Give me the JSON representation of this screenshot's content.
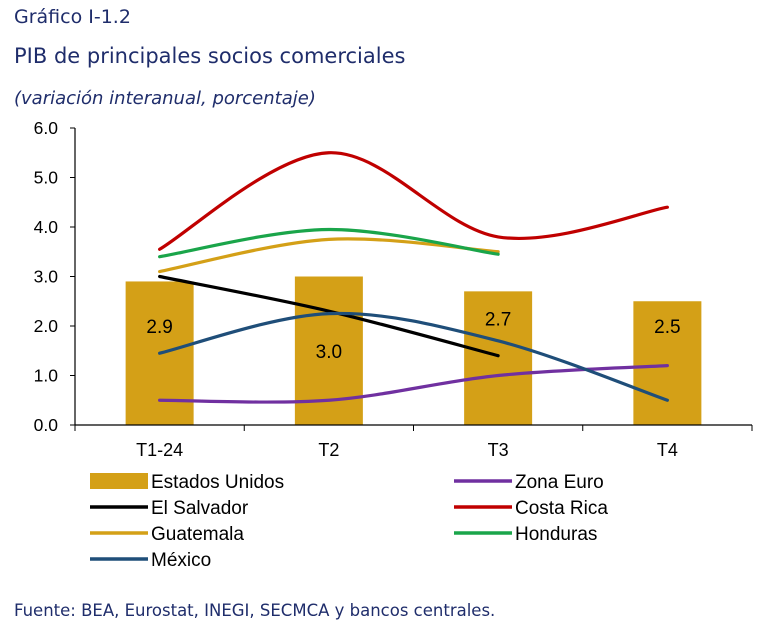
{
  "header": {
    "figure_label": "Gráfico I-1.2",
    "title": "PIB de principales socios comerciales",
    "subtitle": "(variación interanual, porcentaje)"
  },
  "footer": {
    "source": "Fuente: BEA, Eurostat, INEGI, SECMCA y bancos centrales."
  },
  "chart_data": {
    "type": "bar",
    "title": "PIB de principales socios comerciales",
    "subtitle": "(variación interanual, porcentaje)",
    "categories": [
      "T1-24",
      "T2",
      "T3",
      "T4"
    ],
    "ylim": [
      0,
      6
    ],
    "yticks": [
      "0.0",
      "1.0",
      "2.0",
      "3.0",
      "4.0",
      "5.0",
      "6.0"
    ],
    "grid": false,
    "legend_position": "bottom",
    "bar_series": {
      "name": "Estados Unidos",
      "color": "#d4a017",
      "values": [
        2.9,
        3.0,
        2.7,
        2.5
      ],
      "data_labels": [
        "2.9",
        "3.0",
        "2.7",
        "2.5"
      ]
    },
    "line_series": [
      {
        "name": "Zona Euro",
        "color": "#7030a0",
        "values": [
          0.5,
          0.5,
          1.0,
          1.2
        ]
      },
      {
        "name": "Costa Rica",
        "color": "#c00000",
        "values": [
          3.55,
          5.5,
          3.8,
          4.4
        ]
      },
      {
        "name": "El Salvador",
        "color": "#000000",
        "values": [
          3.0,
          2.3,
          1.4,
          null
        ]
      },
      {
        "name": "Guatemala",
        "color": "#d4a017",
        "values": [
          3.1,
          3.75,
          3.5,
          null
        ]
      },
      {
        "name": "Honduras",
        "color": "#1aa54a",
        "values": [
          3.4,
          3.95,
          3.45,
          null
        ]
      },
      {
        "name": "México",
        "color": "#1f4e79",
        "values": [
          1.45,
          2.25,
          1.7,
          0.5
        ]
      }
    ],
    "legend": [
      {
        "name": "Estados Unidos",
        "kind": "bar",
        "color": "#d4a017"
      },
      {
        "name": "Zona Euro",
        "kind": "line",
        "color": "#7030a0"
      },
      {
        "name": "El Salvador",
        "kind": "line",
        "color": "#000000"
      },
      {
        "name": "Costa Rica",
        "kind": "line",
        "color": "#c00000"
      },
      {
        "name": "Guatemala",
        "kind": "line",
        "color": "#d4a017"
      },
      {
        "name": "Honduras",
        "kind": "line",
        "color": "#1aa54a"
      },
      {
        "name": "México",
        "kind": "line",
        "color": "#1f4e79"
      }
    ]
  }
}
